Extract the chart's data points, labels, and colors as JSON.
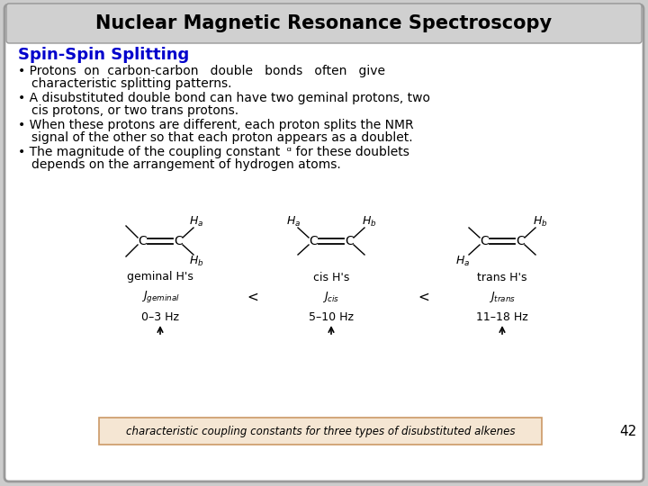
{
  "title": "Nuclear Magnetic Resonance Spectroscopy",
  "subtitle": "Spin-Spin Splitting",
  "subtitle_color": "#0000CC",
  "background_color": "#FFFFFF",
  "border_color": "#999999",
  "slide_bg": "#CCCCCC",
  "title_bar_color": "#D0D0D0",
  "caption_box_color": "#F5E6D3",
  "caption_box_border": "#CC9966",
  "caption_text": "characteristic coupling constants for three types of disubstituted alkenes",
  "page_number": "42",
  "hz_geminal": "0–3 Hz",
  "hz_cis": "5–10 Hz",
  "hz_trans": "11–18 Hz"
}
